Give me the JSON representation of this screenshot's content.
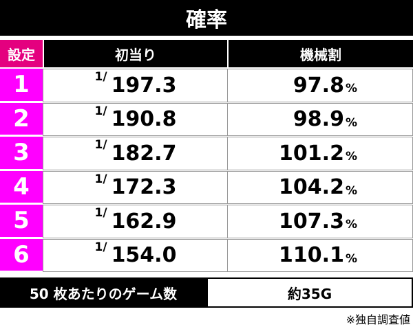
{
  "title": "確率",
  "table": {
    "header": [
      "設定",
      "初当り",
      "機械割"
    ],
    "hit_prefix": "1/",
    "rate_unit": "%",
    "rows": [
      [
        "1",
        "197.3",
        "97.8"
      ],
      [
        "2",
        "190.8",
        "98.9"
      ],
      [
        "3",
        "182.7",
        "101.2"
      ],
      [
        "4",
        "172.3",
        "104.2"
      ],
      [
        "5",
        "162.9",
        "107.3"
      ],
      [
        "6",
        "154.0",
        "110.1"
      ]
    ]
  },
  "footer": {
    "label": "50 枚あたりのゲーム数",
    "value": "約35G",
    "note": "※独自調査値"
  }
}
